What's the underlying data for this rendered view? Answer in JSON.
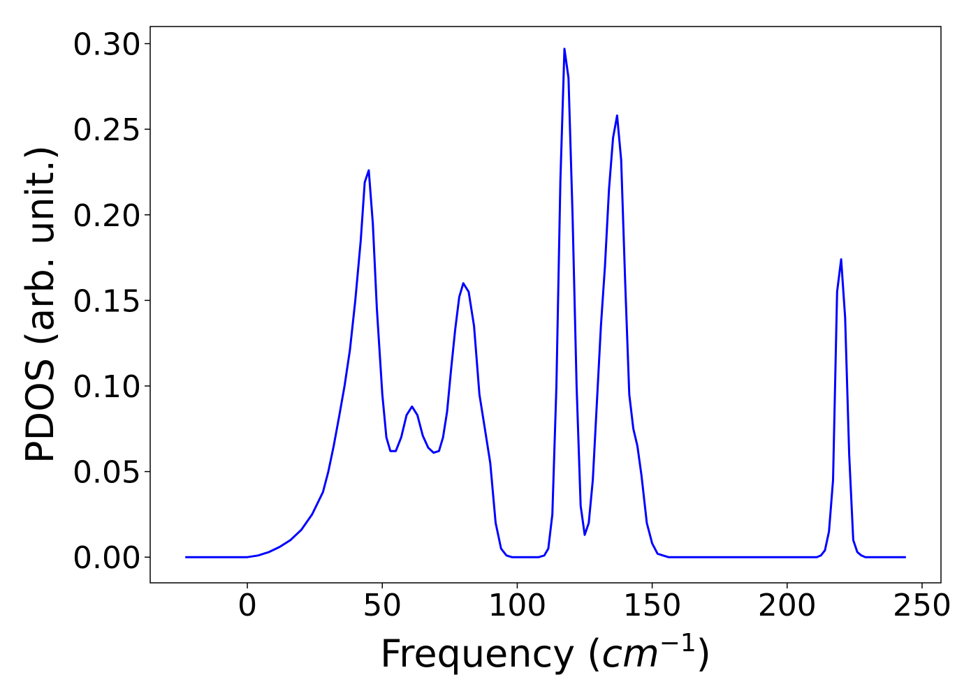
{
  "chart_data": {
    "type": "line",
    "title": "",
    "xlabel": {
      "main": "Frequency (",
      "italic": "cm",
      "sup": "−1",
      "close": ")"
    },
    "ylabel": "PDOS (arb. unit.)",
    "xlim": [
      -36,
      257
    ],
    "ylim": [
      -0.015,
      0.31
    ],
    "xticks": [
      0,
      50,
      100,
      150,
      200,
      250
    ],
    "xtick_labels": [
      "0",
      "50",
      "100",
      "150",
      "200",
      "250"
    ],
    "yticks": [
      0.0,
      0.05,
      0.1,
      0.15,
      0.2,
      0.25,
      0.3
    ],
    "ytick_labels": [
      "0.00",
      "0.05",
      "0.10",
      "0.15",
      "0.20",
      "0.25",
      "0.30"
    ],
    "grid": false,
    "series": [
      {
        "color": "#0000ff",
        "x": [
          -23,
          0,
          4,
          8,
          12,
          16,
          20,
          24,
          28,
          30,
          32,
          34,
          36,
          38,
          40,
          42,
          43.5,
          45,
          46.5,
          48,
          50,
          51.5,
          53,
          55,
          57,
          59,
          61,
          63,
          65,
          67,
          69,
          71,
          72.5,
          74,
          75.5,
          77,
          78.5,
          80,
          82,
          84,
          86,
          88,
          90,
          92,
          94,
          96,
          98,
          100,
          104,
          108,
          110,
          111.5,
          113,
          114.5,
          116,
          117.5,
          119,
          120.5,
          122,
          123.5,
          125,
          126.5,
          128,
          129.5,
          131,
          132.5,
          134,
          135.5,
          137,
          138.5,
          140,
          141.5,
          143,
          144.5,
          146,
          148,
          150,
          152,
          154,
          156,
          158,
          160,
          180,
          200,
          211,
          212.5,
          214,
          215.5,
          217,
          218.5,
          220,
          221.5,
          223,
          224.5,
          226,
          227.5,
          229,
          231,
          244
        ],
        "y": [
          0,
          0,
          0.001,
          0.003,
          0.006,
          0.01,
          0.016,
          0.025,
          0.038,
          0.05,
          0.065,
          0.082,
          0.1,
          0.121,
          0.15,
          0.185,
          0.219,
          0.226,
          0.195,
          0.145,
          0.095,
          0.07,
          0.062,
          0.062,
          0.07,
          0.083,
          0.088,
          0.083,
          0.071,
          0.064,
          0.061,
          0.062,
          0.07,
          0.085,
          0.11,
          0.133,
          0.152,
          0.16,
          0.155,
          0.135,
          0.095,
          0.075,
          0.055,
          0.02,
          0.005,
          0.001,
          0,
          0,
          0,
          0,
          0.001,
          0.005,
          0.025,
          0.1,
          0.22,
          0.297,
          0.28,
          0.2,
          0.1,
          0.03,
          0.013,
          0.02,
          0.045,
          0.09,
          0.135,
          0.17,
          0.215,
          0.245,
          0.258,
          0.232,
          0.16,
          0.095,
          0.075,
          0.065,
          0.048,
          0.02,
          0.008,
          0.002,
          0.001,
          0,
          0,
          0,
          0,
          0,
          0,
          0.001,
          0.004,
          0.015,
          0.045,
          0.155,
          0.174,
          0.14,
          0.06,
          0.01,
          0.003,
          0.001,
          0,
          0,
          0
        ]
      }
    ]
  }
}
